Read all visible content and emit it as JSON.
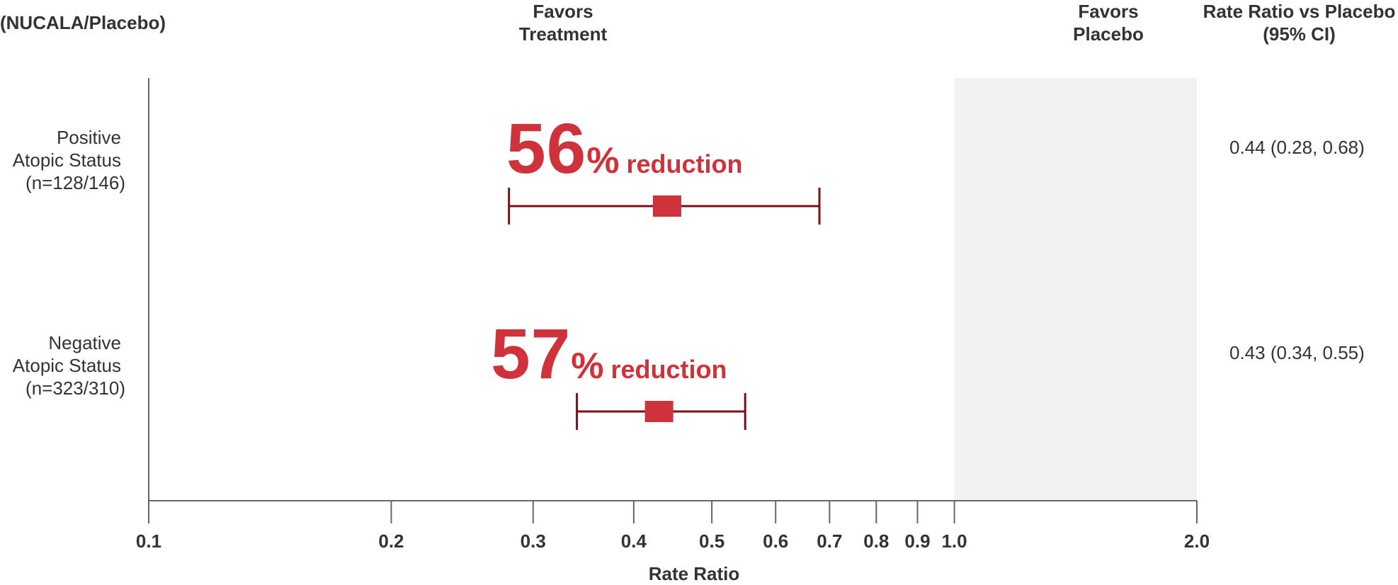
{
  "headers": {
    "group_col": "(NUCALA/Placebo)",
    "favors_treatment": [
      "Favors",
      "Treatment"
    ],
    "favors_placebo": [
      "Favors",
      "Placebo"
    ],
    "ratio_col": [
      "Rate Ratio vs Placebo",
      "(95% CI)"
    ]
  },
  "rows": [
    {
      "label_lines": [
        "Positive",
        "Atopic Status",
        "(n=128/146)"
      ],
      "reduction_number": "56",
      "reduction_pct": "%",
      "reduction_word": "reduction",
      "ci_text": "0.44 (0.28, 0.68)"
    },
    {
      "label_lines": [
        "Negative",
        "Atopic Status",
        "(n=323/310)"
      ],
      "reduction_number": "57",
      "reduction_pct": "%",
      "reduction_word": "reduction",
      "ci_text": "0.43 (0.34, 0.55)"
    }
  ],
  "chart_data": {
    "type": "scatter",
    "subtype": "forest-plot",
    "xlabel": "Rate Ratio",
    "x_scale": "log",
    "xlim": [
      0.1,
      2.0
    ],
    "shaded_region": [
      1.0,
      2.0
    ],
    "x_ticks": [
      0.1,
      0.2,
      0.3,
      0.4,
      0.5,
      0.6,
      0.7,
      0.8,
      0.9,
      1.0,
      2.0
    ],
    "x_tick_labels": [
      "0.1",
      "0.2",
      "0.3",
      "0.4",
      "0.5",
      "0.6",
      "0.7",
      "0.8",
      "0.9",
      "1.0",
      "2.0"
    ],
    "series": [
      {
        "point": 0.44,
        "ci_low": 0.28,
        "ci_high": 0.68
      },
      {
        "point": 0.43,
        "ci_low": 0.34,
        "ci_high": 0.55
      }
    ],
    "colors": {
      "marker": "#d0323b",
      "ci_line": "#7a0f1a",
      "shade": "#f2f2f2",
      "axis": "#666666",
      "accent_text": "#d0323b"
    }
  }
}
